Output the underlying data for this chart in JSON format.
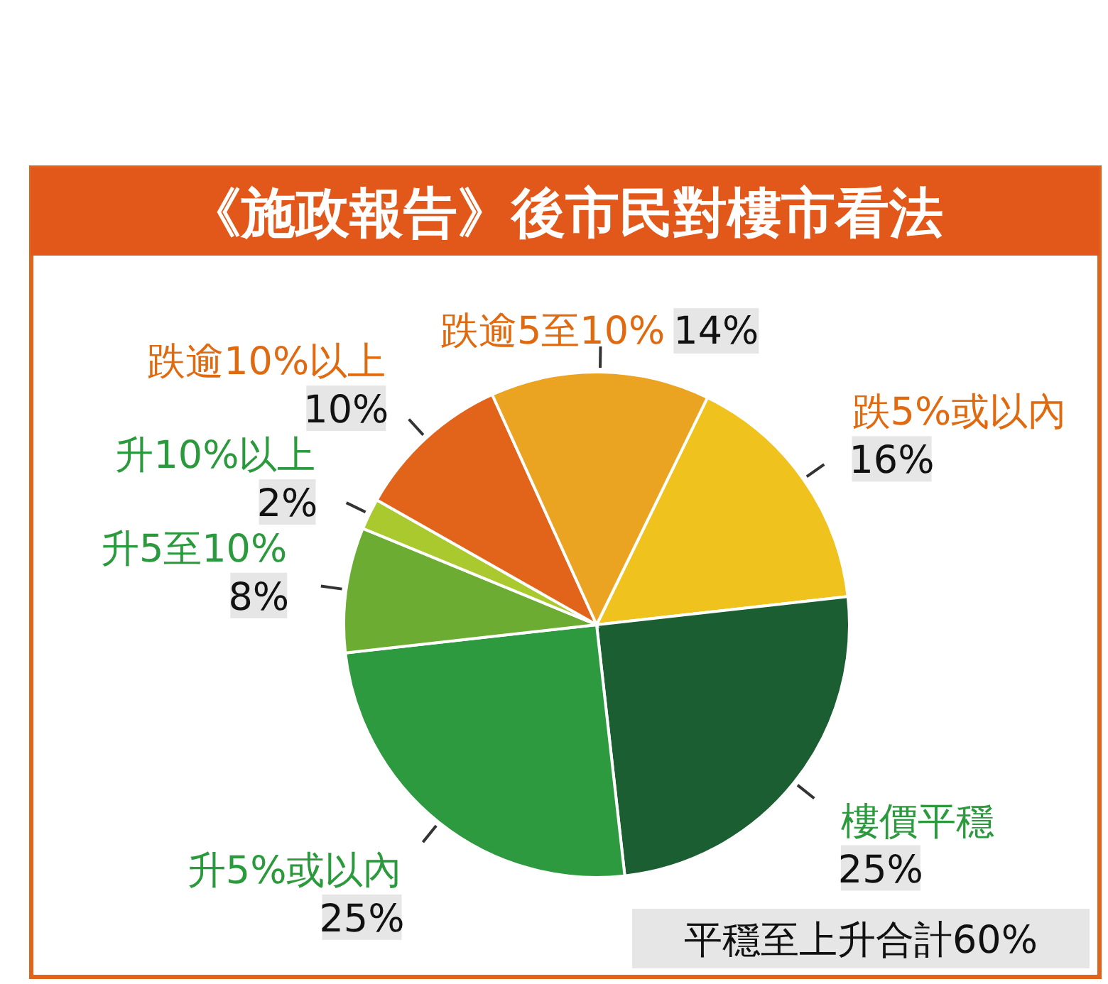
{
  "chart_data": {
    "type": "pie",
    "title": "《施政報告》後市民對樓市看法",
    "categories": [
      "跌5%或以內",
      "樓價平穩",
      "升5%或以內",
      "升5至10%",
      "升10%以上",
      "跌逾10%以上",
      "跌逾5至10%"
    ],
    "values": [
      16,
      25,
      25,
      8,
      2,
      10,
      14
    ],
    "colors": [
      "#f0c21e",
      "#1b5e32",
      "#2e9a40",
      "#6cac32",
      "#a9c92e",
      "#e2631a",
      "#eba322"
    ],
    "value_labels": [
      "16%",
      "25%",
      "25%",
      "8%",
      "2%",
      "10%",
      "14%"
    ],
    "annotations": [
      "平穩至上升合計60%"
    ]
  }
}
